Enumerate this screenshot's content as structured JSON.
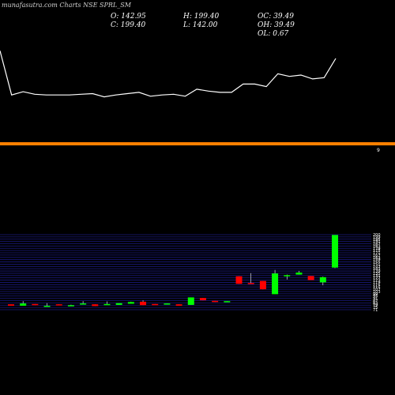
{
  "watermark": "munafasutra.com Charts NSE SPRL_SM",
  "ohlc": {
    "o": "O: 142.95",
    "h": "H: 199.40",
    "c": "C: 199.40",
    "l": "L: 142.00",
    "oc": "OC: 39.49",
    "oh": "OH: 39.49",
    "ol": "OL: 0.67"
  },
  "colors": {
    "up": "#00ff00",
    "down": "#ff0000",
    "line": "#ffffff",
    "divider": "#ff8000",
    "grid": "#1a1a80",
    "bg": "#000000"
  },
  "divider_label": "9",
  "chart_data": [
    {
      "type": "line",
      "title": "",
      "xlabel": "",
      "ylabel": "",
      "grid": false,
      "series": [
        {
          "values": [
            133,
            64,
            69,
            65,
            64,
            64,
            64,
            65,
            66,
            61,
            64,
            66,
            68,
            62,
            64,
            65,
            62,
            73,
            70,
            68,
            68,
            81,
            81,
            77,
            97,
            93,
            95,
            89,
            91,
            121
          ]
        }
      ]
    },
    {
      "type": "candlestick",
      "title": "",
      "grid": true,
      "ylim": [
        70,
        200
      ],
      "y_ticks": [
        "71",
        "75",
        "79",
        "83",
        "87",
        "91",
        "95",
        "99",
        "103",
        "107",
        "111",
        "115",
        "119",
        "123",
        "127",
        "131",
        "135",
        "139",
        "143",
        "147",
        "151",
        "155",
        "159",
        "163",
        "167",
        "171",
        "175",
        "179",
        "183",
        "187",
        "191",
        "195",
        "199",
        "200"
      ],
      "candles": [
        {
          "o": 79.3,
          "h": 79.3,
          "c": 76.8,
          "l": 76.8
        },
        {
          "o": 76.8,
          "h": 84.8,
          "c": 80.8,
          "l": 76.8
        },
        {
          "o": 79.8,
          "h": 79.8,
          "c": 77.8,
          "l": 77.8
        },
        {
          "o": 76.8,
          "h": 81.3,
          "c": 76.8,
          "l": 75.8
        },
        {
          "o": 79.3,
          "h": 79.3,
          "c": 77.8,
          "l": 77.8
        },
        {
          "o": 76.8,
          "h": 78.8,
          "c": 77.8,
          "l": 76.8
        },
        {
          "o": 80.8,
          "h": 84.8,
          "c": 80.8,
          "l": 79.8
        },
        {
          "o": 79.3,
          "h": 79.3,
          "c": 76.3,
          "l": 76.3
        },
        {
          "o": 78.8,
          "h": 84.3,
          "c": 79.8,
          "l": 78.3
        },
        {
          "o": 78.3,
          "h": 80.8,
          "c": 81.3,
          "l": 78.3
        },
        {
          "o": 80.3,
          "h": 83.8,
          "c": 83.3,
          "l": 80.3
        },
        {
          "o": 83.8,
          "h": 86.3,
          "c": 77.8,
          "l": 77.8
        },
        {
          "o": 79.8,
          "h": 79.8,
          "c": 79.3,
          "l": 79.3
        },
        {
          "o": 79.8,
          "h": 80.8,
          "c": 80.8,
          "l": 79.8
        },
        {
          "o": 79.3,
          "h": 79.3,
          "c": 76.8,
          "l": 76.8
        },
        {
          "o": 78.3,
          "h": 91.3,
          "c": 91.3,
          "l": 78.3
        },
        {
          "o": 90.3,
          "h": 90.3,
          "c": 86.3,
          "l": 86.3
        },
        {
          "o": 85.3,
          "h": 85.3,
          "c": 83.3,
          "l": 83.3
        },
        {
          "o": 83.8,
          "h": 84.8,
          "c": 84.8,
          "l": 83.8
        },
        {
          "o": 127.8,
          "h": 127.8,
          "c": 114.8,
          "l": 114.8
        },
        {
          "o": 116.3,
          "h": 133.3,
          "c": 115.8,
          "l": 115.8
        },
        {
          "o": 119.8,
          "h": 119.8,
          "c": 105.3,
          "l": 105.3
        },
        {
          "o": 96.8,
          "h": 138.8,
          "c": 132.8,
          "l": 96.8
        },
        {
          "o": 128.8,
          "h": 130.8,
          "c": 129.8,
          "l": 122.3
        },
        {
          "o": 130.8,
          "h": 137.3,
          "c": 134.3,
          "l": 130.8
        },
        {
          "o": 128.3,
          "h": 128.3,
          "c": 121.3,
          "l": 121.3
        },
        {
          "o": 117.3,
          "h": 127.3,
          "c": 126.3,
          "l": 112.3
        },
        {
          "o": 142.95,
          "h": 199.4,
          "c": 199.4,
          "l": 142.0
        }
      ]
    }
  ]
}
